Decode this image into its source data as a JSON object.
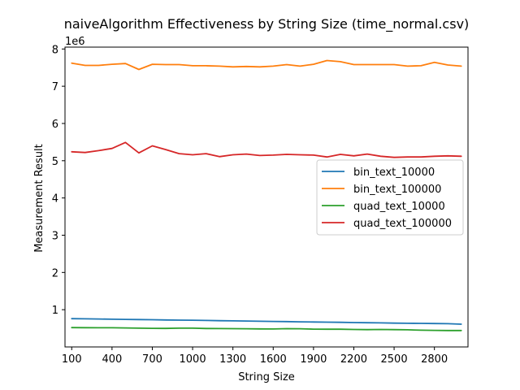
{
  "chart_data": {
    "type": "line",
    "title": "naiveAlgorithm Effectiveness by String Size (time_normal.csv)",
    "xlabel": "String Size",
    "ylabel": "Measurement Result",
    "y_offset_label": "1e6",
    "y_scale": 1000000,
    "xlim": [
      50,
      3050
    ],
    "ylim": [
      0,
      8050000
    ],
    "x_ticks": [
      100,
      400,
      700,
      1000,
      1300,
      1600,
      1900,
      2200,
      2500,
      2800
    ],
    "x_tick_labels": [
      "100",
      "400",
      "700",
      "1000",
      "1300",
      "1600",
      "1900",
      "2200",
      "2500",
      "2800"
    ],
    "y_ticks": [
      1000000,
      2000000,
      3000000,
      4000000,
      5000000,
      6000000,
      7000000,
      8000000
    ],
    "y_tick_labels": [
      "1",
      "2",
      "3",
      "4",
      "5",
      "6",
      "7",
      "8"
    ],
    "grid": false,
    "legend_position": "center-right",
    "x": [
      100,
      200,
      300,
      400,
      500,
      600,
      700,
      800,
      900,
      1000,
      1100,
      1200,
      1300,
      1400,
      1500,
      1600,
      1700,
      1800,
      1900,
      2000,
      2100,
      2200,
      2300,
      2400,
      2500,
      2600,
      2700,
      2800,
      2900,
      3000
    ],
    "series": [
      {
        "name": "bin_text_10000",
        "color": "#1f77b4",
        "values": [
          760000,
          755000,
          750000,
          745000,
          740000,
          735000,
          730000,
          725000,
          720000,
          718000,
          712000,
          705000,
          700000,
          695000,
          690000,
          685000,
          680000,
          675000,
          670000,
          665000,
          660000,
          655000,
          650000,
          645000,
          640000,
          635000,
          632000,
          628000,
          624000,
          610000
        ]
      },
      {
        "name": "bin_text_100000",
        "color": "#ff7f0e",
        "values": [
          7620000,
          7560000,
          7560000,
          7590000,
          7610000,
          7450000,
          7590000,
          7580000,
          7580000,
          7550000,
          7550000,
          7540000,
          7520000,
          7530000,
          7520000,
          7540000,
          7580000,
          7540000,
          7590000,
          7690000,
          7660000,
          7580000,
          7580000,
          7580000,
          7580000,
          7540000,
          7550000,
          7640000,
          7570000,
          7540000
        ]
      },
      {
        "name": "quad_text_10000",
        "color": "#2ca02c",
        "values": [
          520000,
          518000,
          515000,
          515000,
          510000,
          505000,
          500000,
          498000,
          505000,
          505000,
          495000,
          492000,
          490000,
          488000,
          485000,
          482000,
          490000,
          488000,
          478000,
          475000,
          475000,
          470000,
          465000,
          470000,
          465000,
          460000,
          450000,
          445000,
          440000,
          440000
        ]
      },
      {
        "name": "quad_text_100000",
        "color": "#d62728",
        "values": [
          5240000,
          5220000,
          5270000,
          5330000,
          5490000,
          5210000,
          5400000,
          5300000,
          5190000,
          5160000,
          5190000,
          5110000,
          5160000,
          5180000,
          5140000,
          5150000,
          5170000,
          5160000,
          5150000,
          5100000,
          5170000,
          5130000,
          5180000,
          5120000,
          5090000,
          5100000,
          5100000,
          5120000,
          5130000,
          5120000
        ]
      }
    ]
  }
}
